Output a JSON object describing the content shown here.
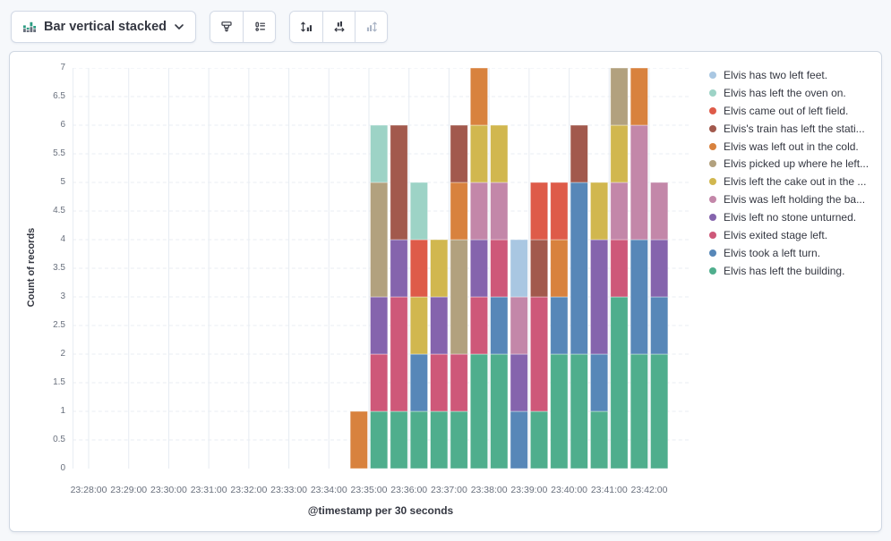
{
  "toolbar": {
    "chart_type": {
      "label": "Bar vertical stacked",
      "icon": "bar-vertical-stacked-icon"
    },
    "settings_buttons": [
      {
        "icon": "visual-options-brush-icon",
        "disabled": false
      },
      {
        "icon": "legend-settings-icon",
        "disabled": false
      }
    ],
    "axis_buttons": [
      {
        "icon": "left-axis-icon",
        "disabled": false
      },
      {
        "icon": "bottom-axis-icon",
        "disabled": false
      },
      {
        "icon": "right-axis-icon",
        "disabled": true
      }
    ]
  },
  "colors": {
    "page_bg": "#F6F8FB",
    "panel_border": "#CFD7E2",
    "grid": "#E8EDF3",
    "tick_text": "#69707D",
    "text": "#343741",
    "icon_disabled": "#ABB5C6"
  },
  "chart_data": {
    "type": "bar",
    "stacked": true,
    "orientation": "vertical",
    "title": "",
    "xlabel": "@timestamp per 30 seconds",
    "ylabel": "Count of records",
    "ylim": [
      0,
      7
    ],
    "grid": true,
    "legend_position": "right",
    "bucket_interval_seconds": 30,
    "y_tick_labels": [
      "0",
      "0.5",
      "1",
      "1.5",
      "2",
      "2.5",
      "3",
      "3.5",
      "4",
      "4.5",
      "5",
      "5.5",
      "6",
      "6.5",
      "7"
    ],
    "x_axis_tick_labels": [
      "23:28:00",
      "23:29:00",
      "23:30:00",
      "23:31:00",
      "23:32:00",
      "23:33:00",
      "23:34:00",
      "23:35:00",
      "23:36:00",
      "23:37:00",
      "23:38:00",
      "23:39:00",
      "23:40:00",
      "23:41:00",
      "23:42:00"
    ],
    "categories": [
      "23:34:30",
      "23:35:00",
      "23:35:30",
      "23:36:00",
      "23:36:30",
      "23:37:00",
      "23:37:30",
      "23:38:00",
      "23:38:30",
      "23:39:00",
      "23:39:30",
      "23:40:00",
      "23:40:30",
      "23:41:00",
      "23:41:30",
      "23:42:00"
    ],
    "stack_order": "last series in list is at the bottom of each stack",
    "series": [
      {
        "label": "Elvis has two left feet.",
        "color": "#A9C7E2",
        "values": [
          0,
          0,
          0,
          0,
          0,
          0,
          0,
          0,
          1,
          0,
          0,
          0,
          0,
          0,
          0,
          0
        ]
      },
      {
        "label": "Elvis has left the oven on.",
        "color": "#9DD3C6",
        "values": [
          0,
          1,
          0,
          1,
          0,
          0,
          0,
          0,
          0,
          0,
          0,
          0,
          0,
          0,
          0,
          0
        ]
      },
      {
        "label": "Elvis came out of left field.",
        "color": "#DE5B49",
        "values": [
          0,
          0,
          0,
          1,
          0,
          0,
          0,
          0,
          0,
          1,
          1,
          0,
          0,
          0,
          0,
          0
        ]
      },
      {
        "label": "Elvis's train has left the stati...",
        "color": "#A2594D",
        "values": [
          0,
          0,
          2,
          0,
          0,
          1,
          0,
          0,
          0,
          1,
          0,
          1,
          0,
          0,
          0,
          0
        ]
      },
      {
        "label": "Elvis was left out in the cold.",
        "color": "#D8823E",
        "values": [
          1,
          0,
          0,
          0,
          0,
          1,
          1,
          0,
          0,
          0,
          1,
          0,
          0,
          0,
          1,
          0
        ]
      },
      {
        "label": "Elvis picked up where he left...",
        "color": "#B2A17E",
        "values": [
          0,
          2,
          0,
          0,
          0,
          2,
          0,
          0,
          0,
          0,
          0,
          0,
          0,
          1,
          0,
          0
        ]
      },
      {
        "label": "Elvis left the cake out in the ...",
        "color": "#D1B74F",
        "values": [
          0,
          0,
          0,
          1,
          1,
          0,
          1,
          1,
          0,
          0,
          0,
          0,
          1,
          1,
          0,
          0
        ]
      },
      {
        "label": "Elvis was left holding the ba...",
        "color": "#C387A9",
        "values": [
          0,
          0,
          0,
          0,
          0,
          0,
          1,
          1,
          1,
          0,
          0,
          0,
          0,
          1,
          2,
          1
        ]
      },
      {
        "label": "Elvis left no stone unturned.",
        "color": "#8564AD",
        "values": [
          0,
          1,
          1,
          0,
          1,
          0,
          1,
          0,
          1,
          0,
          0,
          0,
          2,
          0,
          0,
          1
        ]
      },
      {
        "label": "Elvis exited stage left.",
        "color": "#CE5879",
        "values": [
          0,
          1,
          2,
          0,
          1,
          1,
          1,
          1,
          0,
          2,
          0,
          0,
          0,
          1,
          0,
          0
        ]
      },
      {
        "label": "Elvis took a left turn.",
        "color": "#5787B8",
        "values": [
          0,
          0,
          0,
          1,
          0,
          0,
          0,
          1,
          1,
          0,
          1,
          3,
          1,
          0,
          2,
          1
        ]
      },
      {
        "label": "Elvis has left the building.",
        "color": "#4FAE8D",
        "values": [
          0,
          1,
          1,
          1,
          1,
          1,
          2,
          2,
          0,
          1,
          2,
          2,
          1,
          3,
          2,
          2
        ]
      }
    ]
  }
}
